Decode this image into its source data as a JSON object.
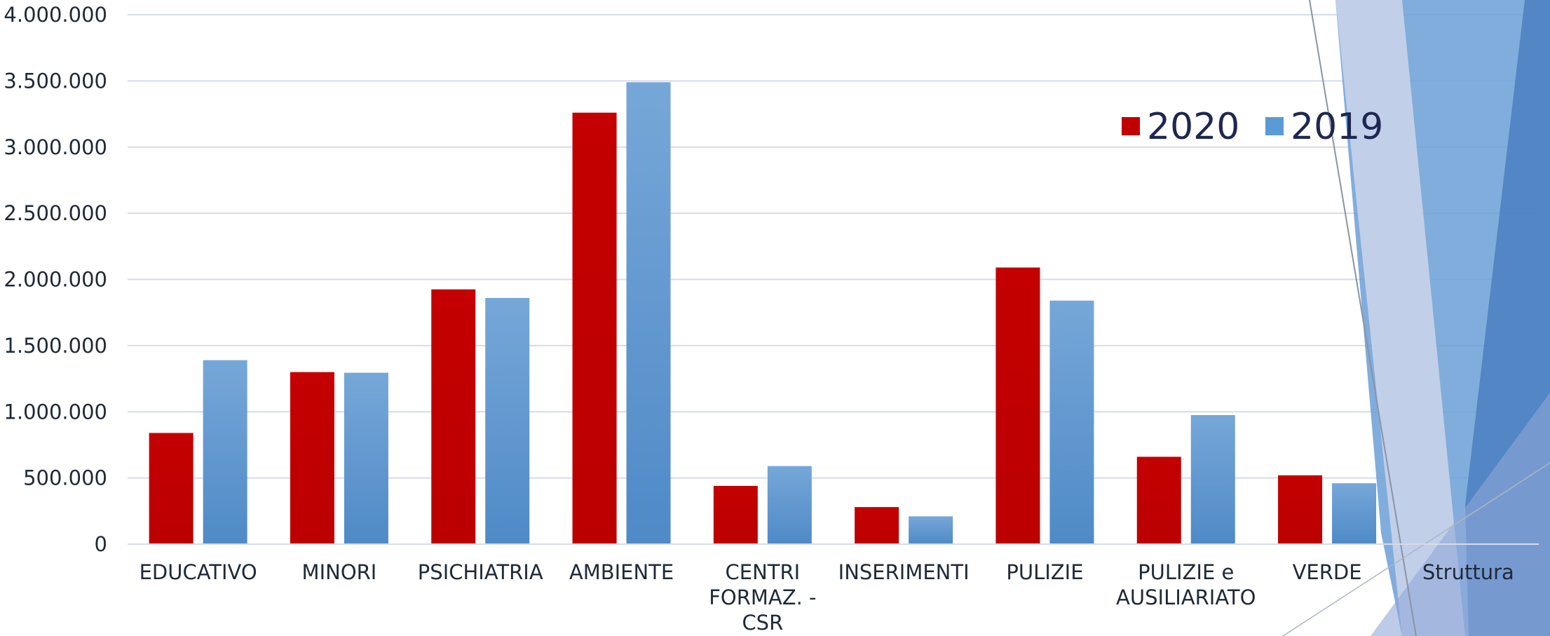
{
  "chart_data": {
    "type": "bar",
    "categories": [
      [
        "EDUCATIVO"
      ],
      [
        "MINORI"
      ],
      [
        "PSICHIATRIA"
      ],
      [
        "AMBIENTE"
      ],
      [
        "CENTRI",
        "FORMAZ. -",
        "CSR"
      ],
      [
        "INSERIMENTI"
      ],
      [
        "PULIZIE"
      ],
      [
        "PULIZIE e",
        "AUSILIARIATO"
      ],
      [
        "VERDE"
      ],
      [
        "Struttura"
      ]
    ],
    "series": [
      {
        "name": "2020",
        "color": "#c00000",
        "values": [
          840000,
          1300000,
          1925000,
          3260000,
          440000,
          280000,
          2090000,
          660000,
          520000,
          0
        ]
      },
      {
        "name": "2019",
        "color": "#5b9bd5",
        "values": [
          1390000,
          1295000,
          1860000,
          3490000,
          590000,
          210000,
          1840000,
          975000,
          460000,
          0
        ]
      }
    ],
    "ylim": [
      0,
      4000000
    ],
    "yticks": [
      "0",
      "500.000",
      "1.000.000",
      "1.500.000",
      "2.000.000",
      "2.500.000",
      "3.000.000",
      "3.500.000",
      "4.000.000"
    ],
    "grid": true,
    "legend_position": "top-right"
  },
  "decor": {
    "accent_dark": "#4a7fbf",
    "accent_mid": "#6b9fd6",
    "accent_light": "#c9d3ea"
  }
}
